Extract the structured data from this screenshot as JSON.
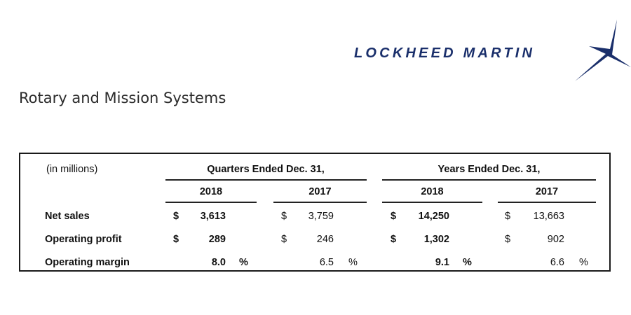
{
  "brand": {
    "logo_text": "LOCKHEED MARTIN",
    "logo_color": "#1a2f6b",
    "logo_icon": "star-icon"
  },
  "page": {
    "title": "Rotary and Mission Systems"
  },
  "table": {
    "units_label": "(in millions)",
    "groups": [
      {
        "label": "Quarters Ended Dec. 31,",
        "years": [
          "2018",
          "2017"
        ]
      },
      {
        "label": "Years Ended Dec. 31,",
        "years": [
          "2018",
          "2017"
        ]
      }
    ],
    "rows": [
      {
        "label": "Net sales",
        "cells": [
          {
            "prefix": "$",
            "value": "3,613",
            "suffix": ""
          },
          {
            "prefix": "$",
            "value": "3,759",
            "suffix": ""
          },
          {
            "prefix": "$",
            "value": "14,250",
            "suffix": ""
          },
          {
            "prefix": "$",
            "value": "13,663",
            "suffix": ""
          }
        ]
      },
      {
        "label": "Operating profit",
        "cells": [
          {
            "prefix": "$",
            "value": "289",
            "suffix": ""
          },
          {
            "prefix": "$",
            "value": "246",
            "suffix": ""
          },
          {
            "prefix": "$",
            "value": "1,302",
            "suffix": ""
          },
          {
            "prefix": "$",
            "value": "902",
            "suffix": ""
          }
        ]
      },
      {
        "label": "Operating margin",
        "cells": [
          {
            "prefix": "",
            "value": "8.0",
            "suffix": "%"
          },
          {
            "prefix": "",
            "value": "6.5",
            "suffix": "%"
          },
          {
            "prefix": "",
            "value": "9.1",
            "suffix": "%"
          },
          {
            "prefix": "",
            "value": "6.6",
            "suffix": "%"
          }
        ]
      }
    ]
  }
}
